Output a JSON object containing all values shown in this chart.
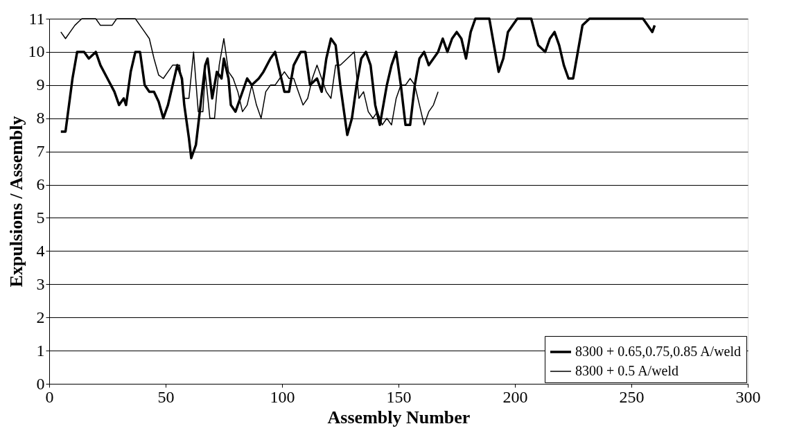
{
  "chart_data": {
    "type": "line",
    "xlabel": "Assembly Number",
    "ylabel": "Expulsions / Assembly",
    "xlim": [
      0,
      300
    ],
    "xticks": [
      0,
      50,
      100,
      150,
      200,
      250,
      300
    ],
    "ylim": [
      0,
      11
    ],
    "yticks": [
      0,
      1,
      2,
      3,
      4,
      5,
      6,
      7,
      8,
      9,
      10,
      11
    ],
    "grid": "y",
    "legend": "bottom right",
    "marker": "none",
    "line_style": "solid",
    "series": [
      {
        "name": "8300 + 0.65,0.75,0.85 A/weld",
        "color": "#000000",
        "x": [
          5,
          7,
          10,
          12,
          15,
          17,
          20,
          22,
          25,
          28,
          30,
          32,
          33,
          35,
          37,
          39,
          41,
          43,
          45,
          47,
          49,
          51,
          53,
          55,
          57,
          58,
          60,
          61,
          63,
          65,
          67,
          68,
          70,
          72,
          74,
          75,
          77,
          78,
          80,
          82,
          85,
          87,
          90,
          92,
          95,
          97,
          99,
          101,
          103,
          105,
          108,
          110,
          112,
          115,
          117,
          119,
          121,
          123,
          125,
          127,
          128,
          130,
          132,
          134,
          136,
          138,
          140,
          142,
          145,
          147,
          149,
          151,
          153,
          155,
          157,
          159,
          161,
          163,
          165,
          167,
          169,
          171,
          173,
          175,
          177,
          179,
          181,
          183,
          186,
          189,
          191,
          193,
          195,
          197,
          199,
          201,
          204,
          207,
          210,
          213,
          215,
          217,
          219,
          221,
          223,
          225,
          227,
          229,
          232,
          240,
          250,
          255,
          257,
          259,
          260
        ],
        "values": [
          7.6,
          7.6,
          9.2,
          10,
          10,
          9.8,
          10,
          9.6,
          9.2,
          8.8,
          8.4,
          8.6,
          8.4,
          9.4,
          10,
          10,
          9,
          8.8,
          8.8,
          8.5,
          8,
          8.4,
          9,
          9.6,
          9.2,
          8.4,
          7.4,
          6.8,
          7.2,
          8.4,
          9.6,
          9.8,
          8.6,
          9.4,
          9.2,
          9.8,
          9.2,
          8.4,
          8.2,
          8.6,
          9.2,
          9,
          9.2,
          9.4,
          9.8,
          10,
          9.4,
          8.8,
          8.8,
          9.6,
          10,
          10,
          9,
          9.2,
          8.8,
          9.8,
          10.4,
          10.2,
          9,
          8,
          7.5,
          8,
          9,
          9.8,
          10,
          9.6,
          8.4,
          7.8,
          9,
          9.6,
          10,
          9,
          7.8,
          7.8,
          9,
          9.8,
          10,
          9.6,
          9.8,
          10,
          10.4,
          10,
          10.4,
          10.6,
          10.4,
          9.8,
          10.6,
          11,
          11,
          11,
          10.2,
          9.4,
          9.8,
          10.6,
          10.8,
          11,
          11,
          11,
          10.2,
          10,
          10.4,
          10.6,
          10.2,
          9.6,
          9.2,
          9.2,
          10,
          10.8,
          11,
          11,
          11,
          11,
          10.8,
          10.6,
          10.8
        ]
      },
      {
        "name": "8300 + 0.5 A/weld",
        "color": "#000000",
        "x": [
          5,
          7,
          9,
          11,
          14,
          20,
          22,
          27,
          29,
          37,
          39,
          41,
          43,
          45,
          47,
          49,
          51,
          53,
          56,
          57,
          58,
          60,
          62,
          64,
          66,
          67,
          69,
          71,
          73,
          75,
          77,
          79,
          81,
          83,
          85,
          87,
          89,
          91,
          93,
          95,
          97,
          99,
          101,
          103,
          105,
          107,
          109,
          111,
          113,
          115,
          117,
          119,
          121,
          123,
          125,
          128,
          131,
          133,
          135,
          137,
          139,
          141,
          143,
          145,
          147,
          149,
          151,
          153,
          155,
          157,
          159,
          161,
          163,
          165,
          167
        ],
        "values": [
          10.6,
          10.4,
          10.6,
          10.8,
          11,
          11,
          10.8,
          10.8,
          11,
          11,
          10.8,
          10.6,
          10.4,
          9.8,
          9.3,
          9.2,
          9.4,
          9.6,
          9.6,
          9,
          8.6,
          8.6,
          10,
          8.2,
          8.2,
          9.4,
          8,
          8,
          9.6,
          10.4,
          9.4,
          9.2,
          8.8,
          8.2,
          8.4,
          9,
          8.4,
          8,
          8.8,
          9,
          9,
          9.2,
          9.4,
          9.2,
          9.2,
          8.8,
          8.4,
          8.6,
          9.2,
          9.6,
          9.2,
          8.8,
          8.6,
          9.6,
          9.6,
          9.8,
          10,
          8.6,
          8.8,
          8.2,
          8,
          8.2,
          7.8,
          8,
          7.8,
          8.6,
          9,
          9,
          9.2,
          9,
          8.4,
          7.8,
          8.2,
          8.4,
          8.8
        ]
      }
    ]
  }
}
